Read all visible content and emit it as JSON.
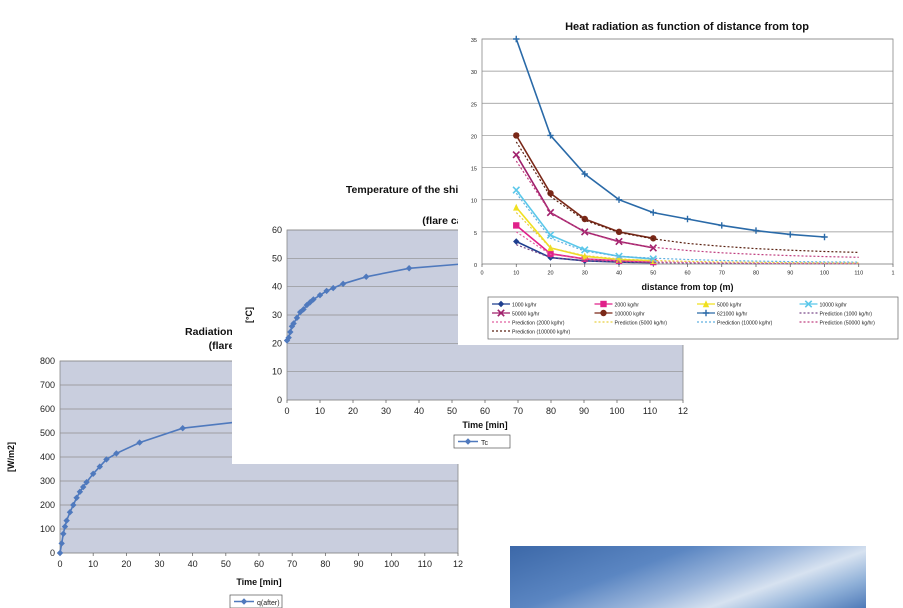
{
  "chart_data": [
    {
      "id": "radiation",
      "type": "line",
      "title": "Radiation from shield after wa",
      "subtitle": "(flare capacity appro",
      "xlabel": "Time [min]",
      "ylabel": "[W/m2]",
      "xlim": [
        0,
        120
      ],
      "ylim": [
        0,
        800
      ],
      "xticks": [
        "0",
        "10",
        "20",
        "30",
        "40",
        "50",
        "60",
        "70",
        "80",
        "90",
        "100",
        "110",
        "12"
      ],
      "yticks": [
        "0",
        "100",
        "200",
        "300",
        "400",
        "500",
        "600",
        "700",
        "800"
      ],
      "legend": "q(after)",
      "series": [
        {
          "color": "#4f79bd",
          "x": [
            0,
            0.5,
            1,
            1.5,
            2,
            3,
            4,
            5,
            6,
            7,
            8,
            10,
            12,
            14,
            17,
            24,
            37,
            53
          ],
          "y": [
            0,
            40,
            80,
            110,
            135,
            170,
            200,
            230,
            255,
            275,
            295,
            330,
            360,
            390,
            415,
            460,
            520,
            545
          ]
        }
      ]
    },
    {
      "id": "temperature",
      "type": "line",
      "title": "Temperature of the shield as",
      "subtitle": "(flare capacity a",
      "xlabel": "Time [min]",
      "ylabel": "[°C]",
      "xlim": [
        0,
        120
      ],
      "ylim": [
        0,
        60
      ],
      "xticks": [
        "0",
        "10",
        "20",
        "30",
        "40",
        "50",
        "60",
        "70",
        "80",
        "90",
        "100",
        "110",
        "12"
      ],
      "yticks": [
        "0",
        "10",
        "20",
        "30",
        "40",
        "50",
        "60"
      ],
      "legend": "Tc",
      "series": [
        {
          "color": "#4f79bd",
          "x": [
            0,
            0.5,
            1,
            1.5,
            2,
            3,
            4,
            5,
            6,
            7,
            8,
            10,
            12,
            14,
            17,
            24,
            37,
            53
          ],
          "y": [
            21,
            22,
            24,
            26,
            27,
            29,
            31,
            32,
            33.5,
            34.5,
            35.5,
            37,
            38.5,
            39.5,
            41,
            43.5,
            46.5,
            48
          ]
        }
      ]
    },
    {
      "id": "heat",
      "type": "line",
      "title": "Heat radiation as function of distance from top",
      "xlabel": "distance from top (m)",
      "ylabel": "heat radiation (kW/m2)",
      "xlim": [
        0,
        120
      ],
      "ylim": [
        0,
        35
      ],
      "xticks": [
        "0",
        "10",
        "20",
        "30",
        "40",
        "50",
        "60",
        "70",
        "80",
        "90",
        "100",
        "110",
        "1"
      ],
      "yticks": [
        "0",
        "5",
        "10",
        "15",
        "20",
        "25",
        "30",
        "35"
      ],
      "series": [
        {
          "name": "1000 kg/hr",
          "color": "#1f3f8f",
          "marker": "diamond",
          "x": [
            10,
            20,
            30,
            40,
            50
          ],
          "y": [
            3.5,
            1,
            0.5,
            0.3,
            0.2
          ]
        },
        {
          "name": "2000 kg/hr",
          "color": "#e0218a",
          "marker": "square",
          "x": [
            10,
            20,
            30,
            40,
            50
          ],
          "y": [
            6,
            1.6,
            0.8,
            0.5,
            0.3
          ]
        },
        {
          "name": "5000 kg/hr",
          "color": "#f0e020",
          "marker": "triangle",
          "x": [
            10,
            20,
            30,
            40,
            50
          ],
          "y": [
            8.8,
            2.5,
            1.2,
            0.7,
            0.5
          ]
        },
        {
          "name": "10000 kg/hr",
          "color": "#5bc8ea",
          "marker": "x",
          "x": [
            10,
            20,
            30,
            40,
            50
          ],
          "y": [
            11.5,
            4.5,
            2.2,
            1.2,
            0.8
          ]
        },
        {
          "name": "50000 kg/hr",
          "color": "#a0206c",
          "marker": "x",
          "x": [
            10,
            20,
            30,
            40,
            50
          ],
          "y": [
            17,
            8,
            5,
            3.5,
            2.5
          ]
        },
        {
          "name": "100000 kg/hr",
          "color": "#7a2818",
          "marker": "circle",
          "x": [
            10,
            20,
            30,
            40,
            50
          ],
          "y": [
            20,
            11,
            7,
            5,
            4
          ]
        },
        {
          "name": "621000 kg/hr",
          "color": "#2a6aa8",
          "marker": "plus",
          "x": [
            10,
            20,
            30,
            40,
            50,
            60,
            70,
            80,
            90,
            100
          ],
          "y": [
            35,
            20,
            14,
            10,
            8,
            7,
            6,
            5.2,
            4.6,
            4.2
          ]
        },
        {
          "name": "Prediction (1000 kg/hr)",
          "color": "#7a4a8a",
          "dashed": true,
          "x": [
            10,
            20,
            30,
            40,
            50,
            60,
            70,
            80,
            90,
            100,
            110
          ],
          "y": [
            3,
            1,
            0.5,
            0.3,
            0.2,
            0.15,
            0.1,
            0.08,
            0.07,
            0.06,
            0.05
          ]
        },
        {
          "name": "Prediction (2000 kg/hr)",
          "color": "#e060a0",
          "dashed": true,
          "x": [
            10,
            20,
            30,
            40,
            50,
            60,
            70,
            80,
            90,
            100,
            110
          ],
          "y": [
            5,
            1.5,
            0.8,
            0.5,
            0.35,
            0.25,
            0.2,
            0.16,
            0.13,
            0.11,
            0.1
          ]
        },
        {
          "name": "Prediction (5000 kg/hr)",
          "color": "#e8d040",
          "dashed": true,
          "x": [
            10,
            20,
            30,
            40,
            50,
            60,
            70,
            80,
            90,
            100,
            110
          ],
          "y": [
            8,
            2.5,
            1.3,
            0.8,
            0.55,
            0.4,
            0.32,
            0.26,
            0.22,
            0.19,
            0.17
          ]
        },
        {
          "name": "Prediction (10000 kg/hr)",
          "color": "#60b0e0",
          "dashed": true,
          "x": [
            10,
            20,
            30,
            40,
            50,
            60,
            70,
            80,
            90,
            100,
            110
          ],
          "y": [
            11,
            4,
            2,
            1.2,
            0.9,
            0.7,
            0.55,
            0.45,
            0.38,
            0.33,
            0.3
          ]
        },
        {
          "name": "Prediction (50000 kg/hr)",
          "color": "#c04080",
          "dashed": true,
          "x": [
            10,
            20,
            30,
            40,
            50,
            60,
            70,
            80,
            90,
            100,
            110
          ],
          "y": [
            16,
            8,
            5,
            3.4,
            2.6,
            2.1,
            1.75,
            1.5,
            1.3,
            1.15,
            1.05
          ]
        },
        {
          "name": "Prediction (100000 kg/hr)",
          "color": "#5a2010",
          "dashed": true,
          "x": [
            10,
            20,
            30,
            40,
            50,
            60,
            70,
            80,
            90,
            100,
            110
          ],
          "y": [
            19,
            10.5,
            6.8,
            4.9,
            3.9,
            3.2,
            2.75,
            2.4,
            2.15,
            1.95,
            1.8
          ]
        }
      ]
    }
  ]
}
